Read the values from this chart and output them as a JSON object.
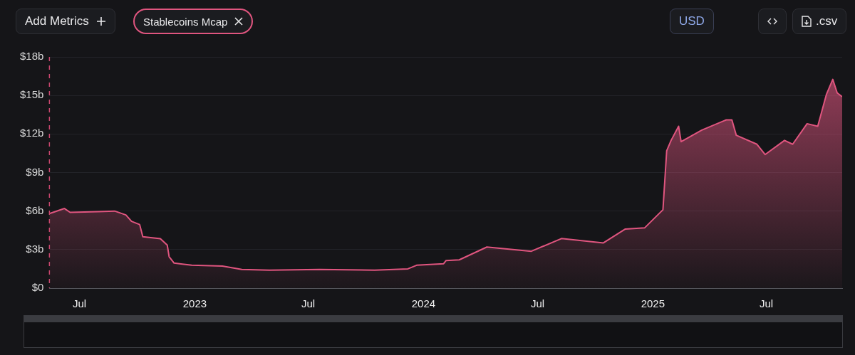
{
  "chart_data": {
    "type": "area",
    "annotations": [
      "Add Metrics",
      "Stablecoins Mcap",
      "USD",
      ".csv"
    ],
    "x": [
      "2022-05-14",
      "2022-06-07",
      "2022-06-16",
      "2022-07-31",
      "2022-08-26",
      "2022-09-13",
      "2022-09-22",
      "2022-10-05",
      "2022-10-10",
      "2022-11-07",
      "2022-11-18",
      "2022-11-21",
      "2022-11-29",
      "2022-12-27",
      "2023-02-14",
      "2023-03-17",
      "2023-04-30",
      "2023-07-19",
      "2023-10-15",
      "2023-12-07",
      "2023-12-21",
      "2024-02-02",
      "2024-02-06",
      "2024-02-27",
      "2024-04-11",
      "2024-06-21",
      "2024-08-08",
      "2024-10-14",
      "2024-11-18",
      "2024-12-19",
      "2025-01-17",
      "2025-01-23",
      "2025-01-30",
      "2025-02-11",
      "2025-02-15",
      "2025-03-20",
      "2025-04-28",
      "2025-05-07",
      "2025-05-14",
      "2025-06-16",
      "2025-06-29",
      "2025-07-30",
      "2025-08-12",
      "2025-09-04",
      "2025-09-21",
      "2025-10-05",
      "2025-10-15",
      "2025-10-22",
      "2025-10-30"
    ],
    "series": [
      {
        "color": "#e0557f",
        "values": [
          5.8,
          6.2,
          5.9,
          5.95,
          6.0,
          5.7,
          5.2,
          4.95,
          4.0,
          3.85,
          3.35,
          2.45,
          1.95,
          1.78,
          1.72,
          1.45,
          1.4,
          1.45,
          1.4,
          1.5,
          1.78,
          1.9,
          2.15,
          2.2,
          3.2,
          2.87,
          3.86,
          3.52,
          4.6,
          4.7,
          6.1,
          10.7,
          11.5,
          12.6,
          11.4,
          12.3,
          13.1,
          13.1,
          11.9,
          11.2,
          10.4,
          11.5,
          11.2,
          12.8,
          12.6,
          15.1,
          16.25,
          15.2,
          14.9
        ]
      }
    ],
    "xlim": [
      "2022-05-14",
      "2025-10-30"
    ],
    "xticks": [
      {
        "value": "2022-07-01",
        "label": "Jul"
      },
      {
        "value": "2023-01-01",
        "label": "2023"
      },
      {
        "value": "2023-07-01",
        "label": "Jul"
      },
      {
        "value": "2024-01-01",
        "label": "2024"
      },
      {
        "value": "2024-07-01",
        "label": "Jul"
      },
      {
        "value": "2025-01-01",
        "label": "2025"
      },
      {
        "value": "2025-07-01",
        "label": "Jul"
      }
    ],
    "ylim": [
      0,
      18
    ],
    "yticks": [
      {
        "value": 0,
        "label": "$0"
      },
      {
        "value": 3,
        "label": "$3b"
      },
      {
        "value": 6,
        "label": "$6b"
      },
      {
        "value": 9,
        "label": "$9b"
      },
      {
        "value": 12,
        "label": "$12b"
      },
      {
        "value": 15,
        "label": "$15b"
      },
      {
        "value": 18,
        "label": "$18b"
      }
    ],
    "grid": "y",
    "legend": false,
    "marker": "none",
    "line_style": "solid",
    "ref_lines": [
      {
        "axis": "x",
        "value": "2022-05-14",
        "color": "#c9476e",
        "line_style": "dashed"
      }
    ]
  }
}
